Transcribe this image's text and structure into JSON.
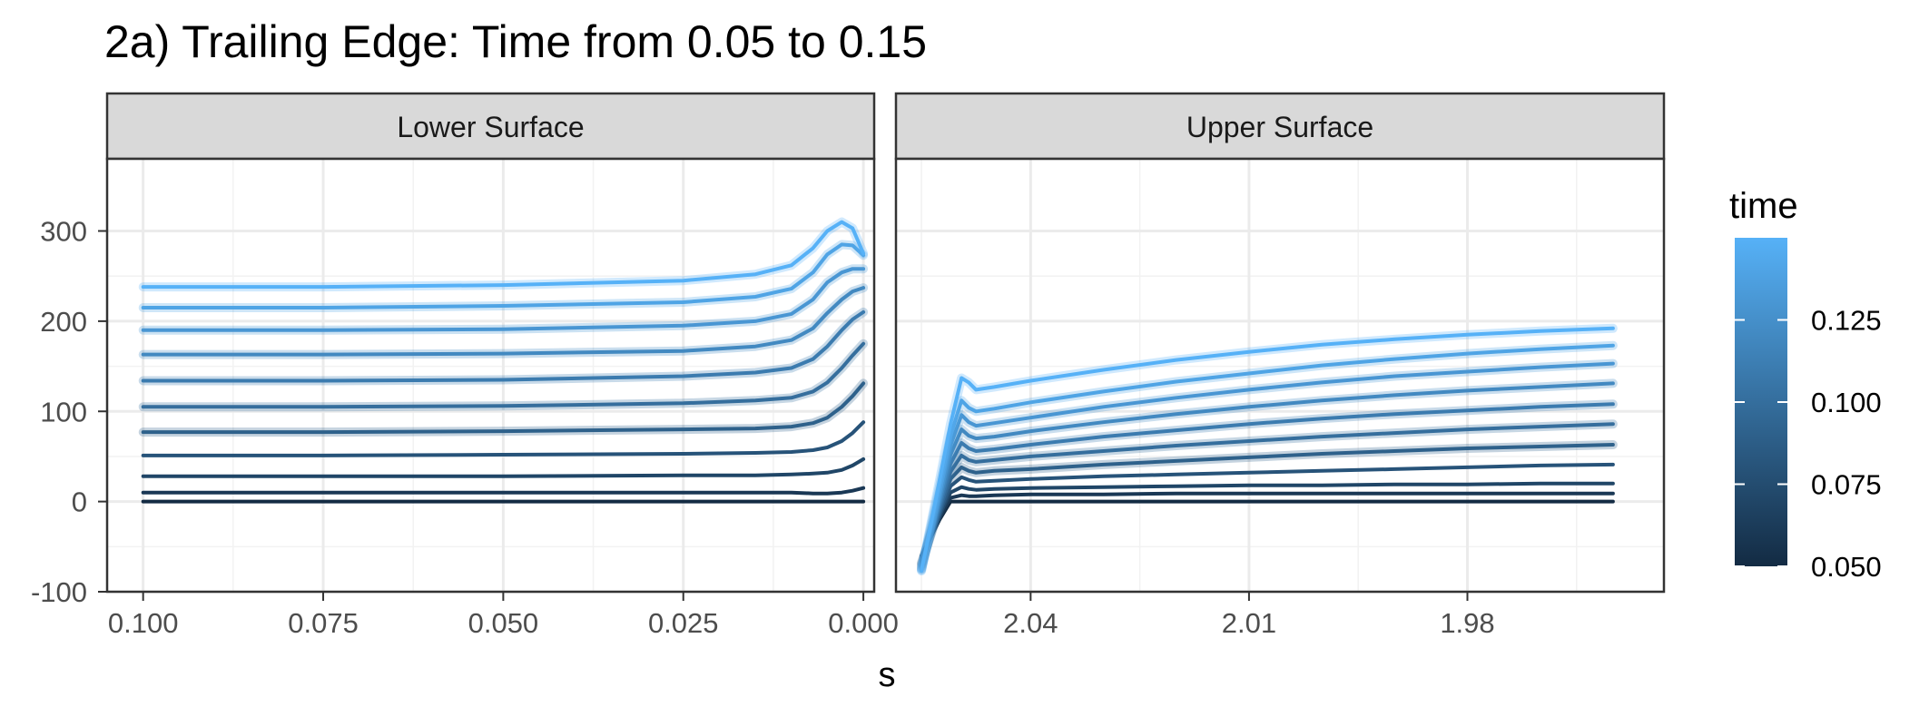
{
  "chart_data": {
    "type": "line",
    "title": "2a) Trailing Edge: Time from 0.05 to 0.15",
    "xlabel": "s",
    "ylabel": "",
    "ylim": [
      -100,
      380
    ],
    "y_ticks": [
      "300",
      "200",
      "100",
      "0",
      "-100"
    ],
    "y_tick_values": [
      300,
      200,
      100,
      0,
      -100
    ],
    "grid": true,
    "legend_position": "right",
    "legend": {
      "title": "time",
      "type": "colorbar",
      "range": [
        0.05,
        0.15
      ],
      "low_color": "#132B43",
      "high_color": "#56B1F7",
      "ticks": [
        "0.125",
        "0.100",
        "0.075",
        "0.050"
      ],
      "tick_values": [
        0.125,
        0.1,
        0.075,
        0.05
      ]
    },
    "times": [
      0.05,
      0.06,
      0.07,
      0.08,
      0.09,
      0.1,
      0.11,
      0.12,
      0.13,
      0.14,
      0.15
    ],
    "panels": [
      {
        "strip": "Lower Surface",
        "xlim": [
          0.105,
          -0.0015
        ],
        "x_ticks": [
          "0.100",
          "0.075",
          "0.050",
          "0.025",
          "0.000"
        ],
        "x_tick_values": [
          0.1,
          0.075,
          0.05,
          0.025,
          0.0
        ],
        "x": [
          0.1,
          0.075,
          0.05,
          0.025,
          0.015,
          0.01,
          0.007,
          0.005,
          0.003,
          0.0015,
          0.0
        ],
        "series": [
          {
            "time": 0.05,
            "values": [
              0,
              0,
              0,
              0,
              0,
              0,
              0,
              0,
              0,
              0,
              0
            ]
          },
          {
            "time": 0.06,
            "values": [
              10,
              10,
              10,
              10,
              10,
              10,
              9,
              9,
              10,
              12,
              15
            ]
          },
          {
            "time": 0.07,
            "values": [
              28,
              28,
              28,
              29,
              29,
              30,
              31,
              32,
              35,
              40,
              47
            ]
          },
          {
            "time": 0.08,
            "values": [
              51,
              51,
              52,
              53,
              54,
              55,
              57,
              60,
              67,
              76,
              88
            ]
          },
          {
            "time": 0.09,
            "values": [
              77,
              77,
              78,
              80,
              81,
              83,
              87,
              93,
              105,
              117,
              131
            ]
          },
          {
            "time": 0.1,
            "values": [
              105,
              105,
              106,
              109,
              112,
              115,
              122,
              132,
              148,
              162,
              175
            ]
          },
          {
            "time": 0.11,
            "values": [
              134,
              134,
              135,
              139,
              143,
              148,
              158,
              172,
              190,
              202,
              210
            ]
          },
          {
            "time": 0.12,
            "values": [
              163,
              163,
              164,
              167,
              172,
              179,
              192,
              209,
              224,
              233,
              237
            ]
          },
          {
            "time": 0.13,
            "values": [
              190,
              190,
              191,
              195,
              200,
              208,
              224,
              243,
              254,
              258,
              258
            ]
          },
          {
            "time": 0.14,
            "values": [
              215,
              215,
              217,
              221,
              227,
              236,
              254,
              274,
              285,
              284,
              273
            ]
          },
          {
            "time": 0.15,
            "values": [
              238,
              238,
              240,
              245,
              252,
              262,
              281,
              300,
              310,
              303,
              275
            ]
          }
        ]
      },
      {
        "strip": "Upper Surface",
        "xlim": [
          2.0585,
          1.953
        ],
        "x_ticks": [
          "2.04",
          "2.01",
          "1.98"
        ],
        "x_tick_values": [
          2.04,
          2.01,
          1.98
        ],
        "x": [
          2.055,
          2.0525,
          2.051,
          2.0495,
          2.0485,
          2.0475,
          2.045,
          2.04,
          2.03,
          2.02,
          2.01,
          2.0,
          1.99,
          1.98,
          1.97,
          1.96
        ],
        "series": [
          {
            "time": 0.05,
            "values": [
              -60,
              -20,
              0,
              0,
              0,
              0,
              0,
              0,
              0,
              0,
              0,
              0,
              0,
              0,
              0,
              0
            ]
          },
          {
            "time": 0.06,
            "values": [
              -62,
              -18,
              4,
              7,
              6,
              6,
              7,
              8,
              8,
              9,
              9,
              9,
              9,
              9,
              9,
              9
            ]
          },
          {
            "time": 0.07,
            "values": [
              -64,
              -15,
              10,
              16,
              14,
              13,
              14,
              15,
              16,
              17,
              18,
              18,
              19,
              19,
              20,
              20
            ]
          },
          {
            "time": 0.08,
            "values": [
              -66,
              -12,
              17,
              27,
              24,
              22,
              23,
              25,
              28,
              30,
              32,
              34,
              36,
              38,
              40,
              41
            ]
          },
          {
            "time": 0.09,
            "values": [
              -68,
              -8,
              25,
              38,
              34,
              32,
              34,
              36,
              41,
              45,
              49,
              53,
              56,
              59,
              61,
              63
            ]
          },
          {
            "time": 0.1,
            "values": [
              -70,
              -4,
              33,
              51,
              46,
              44,
              46,
              50,
              56,
              62,
              67,
              72,
              76,
              80,
              83,
              86
            ]
          },
          {
            "time": 0.11,
            "values": [
              -72,
              0,
              42,
              65,
              59,
              56,
              58,
              63,
              72,
              79,
              86,
              92,
              97,
              101,
              105,
              108
            ]
          },
          {
            "time": 0.12,
            "values": [
              -74,
              5,
              52,
              80,
              73,
              70,
              72,
              78,
              88,
              97,
              105,
              112,
              118,
              123,
              127,
              131
            ]
          },
          {
            "time": 0.13,
            "values": [
              -75,
              11,
              62,
              96,
              88,
              84,
              87,
              93,
              105,
              115,
              124,
              132,
              139,
              144,
              149,
              153
            ]
          },
          {
            "time": 0.14,
            "values": [
              -76,
              17,
              73,
              112,
              104,
              100,
              103,
              110,
              122,
              133,
              142,
              151,
              158,
              164,
              169,
              173
            ]
          },
          {
            "time": 0.15,
            "values": [
              -77,
              24,
              86,
              137,
              132,
              124,
              127,
              134,
              146,
              157,
              166,
              174,
              180,
              185,
              189,
              192
            ]
          }
        ]
      }
    ]
  }
}
